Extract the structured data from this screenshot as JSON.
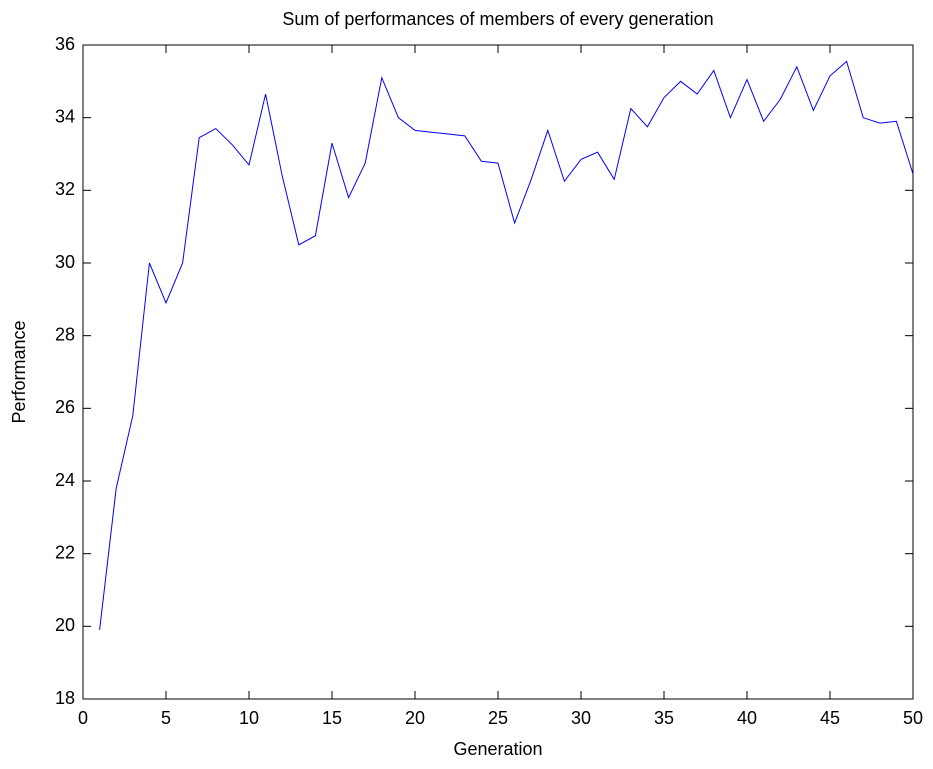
{
  "chart_data": {
    "type": "line",
    "title": "Sum of performances of members of every generation",
    "x_label": "Generation",
    "y_label": "Performance",
    "series": [
      {
        "name": "Performance",
        "color": "#0000ff",
        "x": [
          1,
          2,
          3,
          4,
          5,
          6,
          7,
          8,
          9,
          10,
          11,
          12,
          13,
          14,
          15,
          16,
          17,
          18,
          19,
          20,
          21,
          22,
          23,
          24,
          25,
          26,
          27,
          28,
          29,
          30,
          31,
          32,
          33,
          34,
          35,
          36,
          37,
          38,
          39,
          40,
          41,
          42,
          43,
          44,
          45,
          46,
          47,
          48,
          49,
          50
        ],
        "values": [
          19.9,
          23.8,
          25.8,
          30.0,
          28.9,
          30.0,
          33.45,
          33.7,
          33.25,
          32.7,
          34.65,
          32.4,
          30.5,
          30.75,
          33.3,
          31.8,
          32.75,
          35.1,
          34.0,
          33.65,
          33.6,
          33.55,
          33.5,
          32.8,
          32.75,
          31.1,
          32.3,
          33.65,
          32.25,
          32.85,
          33.05,
          32.3,
          34.25,
          33.75,
          34.55,
          35.0,
          34.65,
          35.3,
          34.0,
          35.05,
          33.9,
          34.5,
          35.4,
          34.2,
          35.15,
          35.55,
          34.0,
          33.85,
          33.9,
          32.45
        ]
      }
    ],
    "xlim": [
      0,
      50
    ],
    "xticks": [
      0,
      5,
      10,
      15,
      20,
      25,
      30,
      35,
      40,
      45,
      50
    ],
    "ylim": [
      18,
      36
    ],
    "yticks": [
      18,
      20,
      22,
      24,
      26,
      28,
      30,
      32,
      34,
      36
    ],
    "grid": false
  }
}
